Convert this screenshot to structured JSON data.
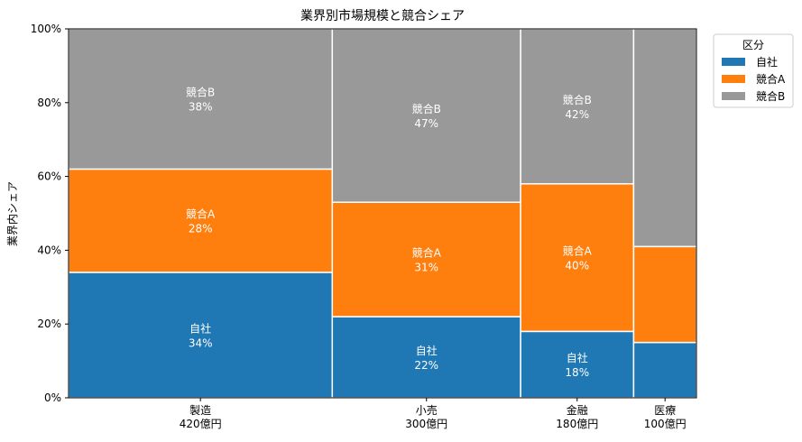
{
  "chart_data": {
    "type": "mosaic",
    "title": "業界別市場規模と競合シェア",
    "ylabel": "業界内シェア",
    "xlabel": "",
    "ylim": [
      0,
      100
    ],
    "y_ticks": [
      "0%",
      "20%",
      "40%",
      "60%",
      "80%",
      "100%"
    ],
    "categories": [
      "製造",
      "小売",
      "金融",
      "医療"
    ],
    "market_size_labels": [
      "420億円",
      "300億円",
      "180億円",
      "100億円"
    ],
    "market_size": [
      420,
      300,
      180,
      100
    ],
    "series": [
      {
        "name": "自社",
        "color": "#1f77b4",
        "values": [
          34,
          22,
          18,
          15
        ]
      },
      {
        "name": "競合A",
        "color": "#ff7f0e",
        "values": [
          28,
          31,
          40,
          26
        ]
      },
      {
        "name": "競合B",
        "color": "#999999",
        "values": [
          38,
          47,
          42,
          59
        ]
      }
    ],
    "segment_labels": [
      [
        "自社",
        "34%"
      ],
      [
        "自社",
        "22%"
      ],
      [
        "自社",
        "18%"
      ],
      null,
      [
        "競合A",
        "28%"
      ],
      [
        "競合A",
        "31%"
      ],
      [
        "競合A",
        "40%"
      ],
      null,
      [
        "競合B",
        "38%"
      ],
      [
        "競合B",
        "47%"
      ],
      [
        "競合B",
        "42%"
      ],
      null
    ],
    "legend": {
      "title": "区分",
      "position": "top-right-outside"
    },
    "grid": false
  }
}
